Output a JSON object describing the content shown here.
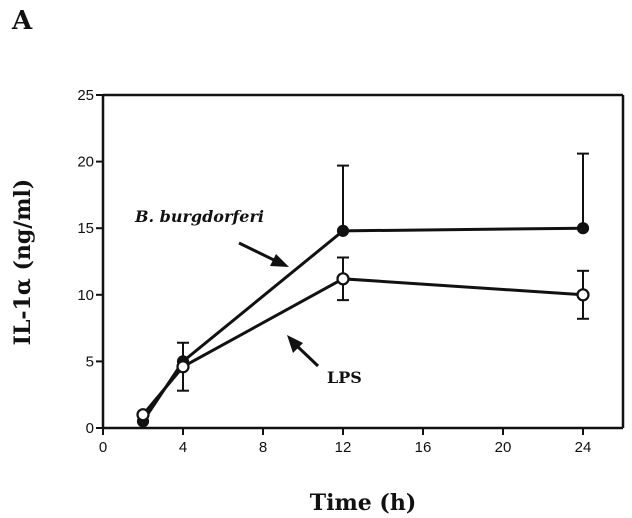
{
  "panel_label": "A",
  "chart_data": {
    "type": "line",
    "title": "",
    "xlabel": "Time (h)",
    "ylabel": "IL-1α (ng/ml)",
    "xlim": [
      0,
      26
    ],
    "ylim": [
      0,
      25
    ],
    "x_ticks": [
      "0",
      "4",
      "8",
      "12",
      "16",
      "20",
      "24"
    ],
    "y_ticks": [
      "0",
      "5",
      "10",
      "15",
      "20",
      "25"
    ],
    "grid": false,
    "series": [
      {
        "name": "B. burgdorferi",
        "marker": "filled-circle",
        "x": [
          2,
          4,
          12,
          24
        ],
        "y": [
          0.5,
          5.0,
          14.8,
          15.0
        ],
        "err": [
          0,
          0,
          4.9,
          5.6
        ]
      },
      {
        "name": "LPS",
        "marker": "open-circle",
        "x": [
          2,
          4,
          12,
          24
        ],
        "y": [
          1.0,
          4.6,
          11.2,
          10.0
        ],
        "err": [
          0,
          1.8,
          1.6,
          1.8
        ]
      }
    ],
    "annotations": [
      "B. burgdorferi",
      "LPS"
    ]
  }
}
